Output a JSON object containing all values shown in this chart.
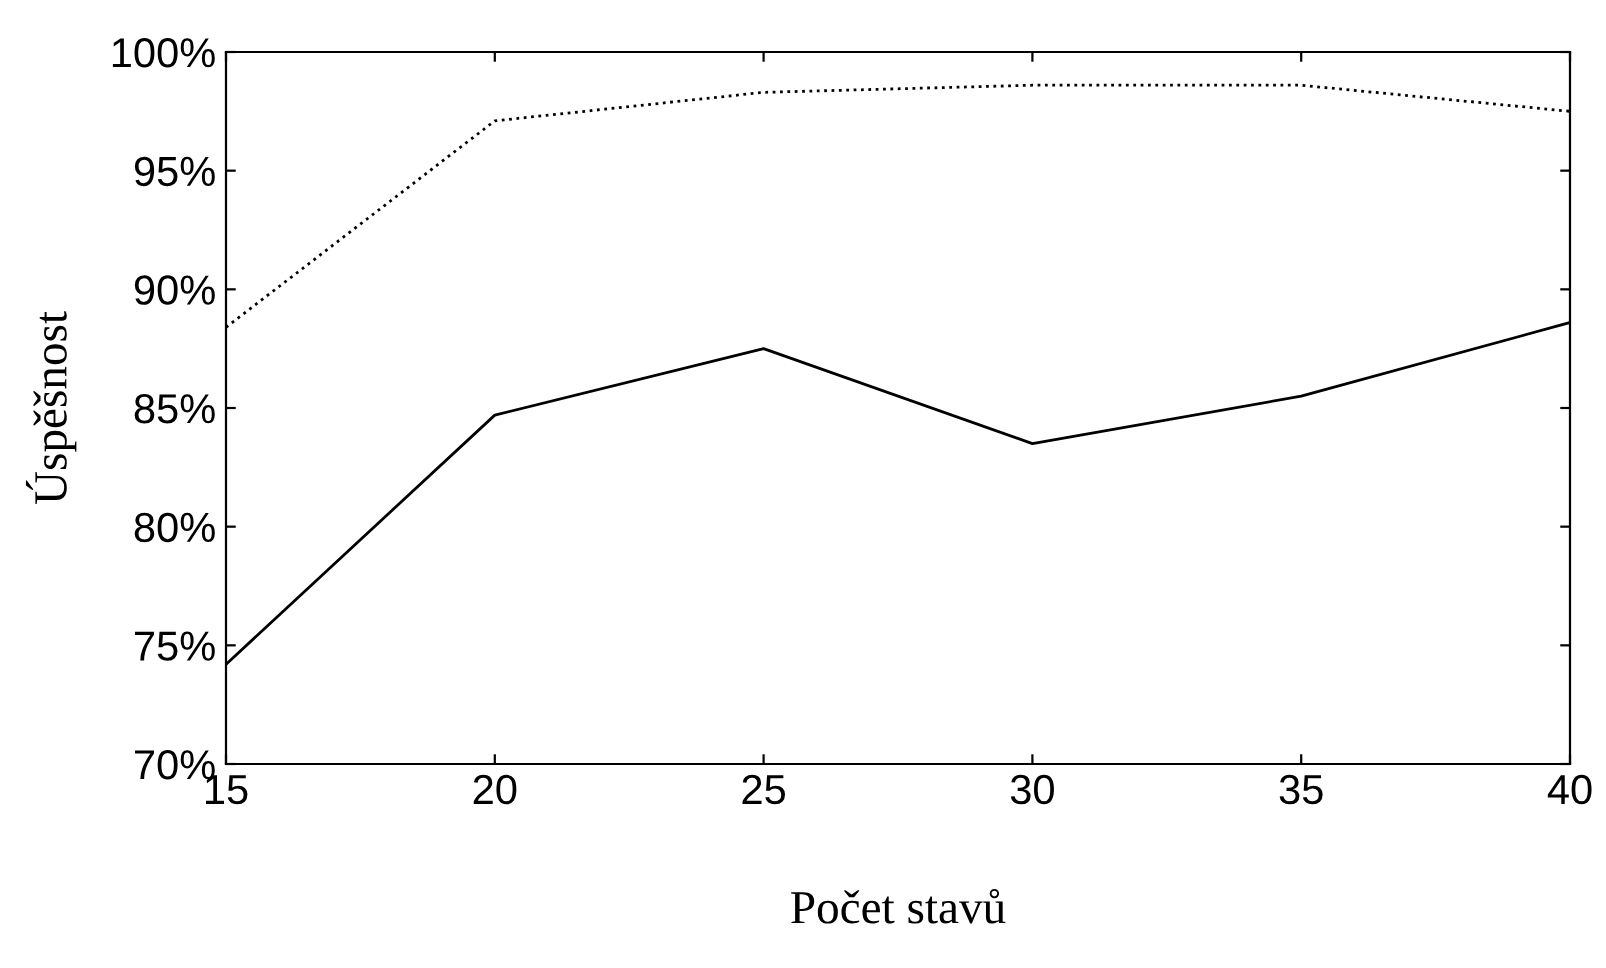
{
  "chart_data": {
    "type": "line",
    "xlabel": "Počet stavů",
    "ylabel": "Úspěšnost",
    "x": [
      15,
      20,
      25,
      30,
      35,
      40
    ],
    "series": [
      {
        "color": "#000000",
        "line_style": "solid",
        "values": [
          74.2,
          84.7,
          87.5,
          83.5,
          85.5,
          88.6
        ]
      },
      {
        "color": "#000000",
        "line_style": "dotted",
        "values": [
          88.4,
          97.1,
          98.3,
          98.6,
          98.6,
          97.5
        ]
      }
    ],
    "xlim": [
      15,
      40
    ],
    "xticks": [
      15,
      20,
      25,
      30,
      35,
      40
    ],
    "ylim": [
      70,
      100
    ],
    "yticks": [
      {
        "value": 70,
        "label": "70%"
      },
      {
        "value": 75,
        "label": "75%"
      },
      {
        "value": 80,
        "label": "80%"
      },
      {
        "value": 85,
        "label": "85%"
      },
      {
        "value": 90,
        "label": "90%"
      },
      {
        "value": 95,
        "label": "95%"
      },
      {
        "value": 100,
        "label": "100%"
      }
    ],
    "grid": false,
    "legend": false,
    "marker": "none"
  }
}
